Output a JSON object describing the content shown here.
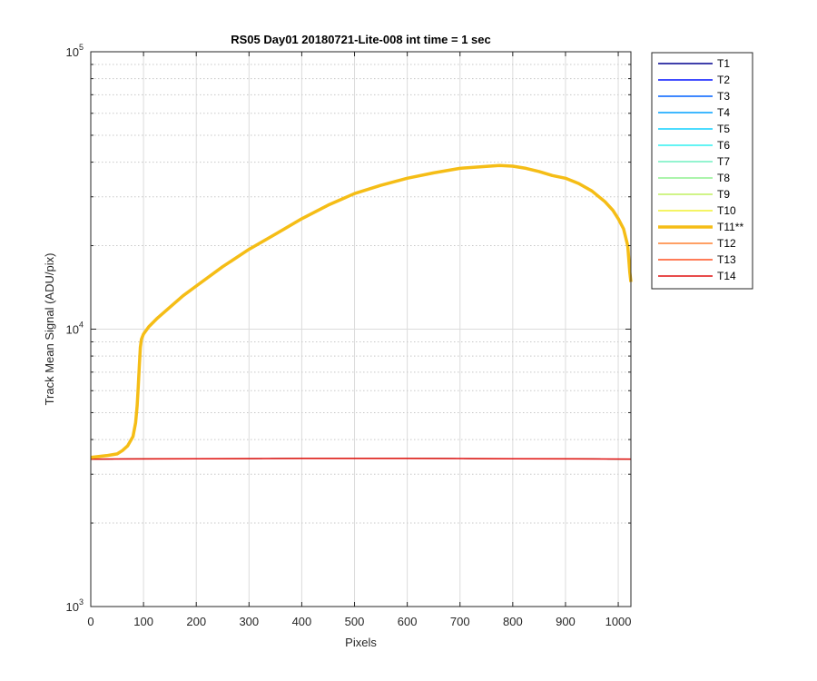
{
  "chart_data": {
    "type": "line",
    "title": "RS05 Day01 20180721-Lite-008 int time = 1 sec",
    "xlabel": "Pixels",
    "ylabel": "Track Mean Signal (ADU/pix)",
    "xlim": [
      0,
      1024
    ],
    "ylim": [
      1000,
      100000
    ],
    "yscale": "log",
    "grid": true,
    "minor_grid": true,
    "legend_position": "outside-right",
    "x_ticks": [
      0,
      100,
      200,
      300,
      400,
      500,
      600,
      700,
      800,
      900,
      1000
    ],
    "x_tick_labels": [
      "0",
      "100",
      "200",
      "300",
      "400",
      "500",
      "600",
      "700",
      "800",
      "900",
      "1000"
    ],
    "y_ticks": [
      1000,
      10000,
      100000
    ],
    "y_tick_labels": [
      {
        "base": "10",
        "exp": "3"
      },
      {
        "base": "10",
        "exp": "4"
      },
      {
        "base": "10",
        "exp": "5"
      }
    ],
    "series": [
      {
        "name": "T1",
        "color": "#00008f",
        "width": 1,
        "x": [
          0,
          200,
          400,
          600,
          800,
          1024
        ],
        "y": [
          3400,
          3410,
          3420,
          3420,
          3410,
          3400
        ]
      },
      {
        "name": "T2",
        "color": "#0010ff",
        "width": 1,
        "x": [
          0,
          200,
          400,
          600,
          800,
          1024
        ],
        "y": [
          3400,
          3410,
          3420,
          3420,
          3410,
          3400
        ]
      },
      {
        "name": "T3",
        "color": "#0060ff",
        "width": 1,
        "x": [
          0,
          200,
          400,
          600,
          800,
          1024
        ],
        "y": [
          3400,
          3410,
          3420,
          3420,
          3410,
          3400
        ]
      },
      {
        "name": "T4",
        "color": "#00a0ff",
        "width": 1,
        "x": [
          0,
          200,
          400,
          600,
          800,
          1024
        ],
        "y": [
          3400,
          3410,
          3420,
          3420,
          3410,
          3400
        ]
      },
      {
        "name": "T5",
        "color": "#10d0ff",
        "width": 1,
        "x": [
          0,
          200,
          400,
          600,
          800,
          1024
        ],
        "y": [
          3400,
          3410,
          3420,
          3420,
          3410,
          3400
        ]
      },
      {
        "name": "T6",
        "color": "#30f0f0",
        "width": 1,
        "x": [
          0,
          200,
          400,
          600,
          800,
          1024
        ],
        "y": [
          3400,
          3410,
          3420,
          3420,
          3410,
          3400
        ]
      },
      {
        "name": "T7",
        "color": "#70f0c0",
        "width": 1,
        "x": [
          0,
          200,
          400,
          600,
          800,
          1024
        ],
        "y": [
          3400,
          3410,
          3420,
          3420,
          3410,
          3400
        ]
      },
      {
        "name": "T8",
        "color": "#90f090",
        "width": 1,
        "x": [
          0,
          200,
          400,
          600,
          800,
          1024
        ],
        "y": [
          3400,
          3410,
          3420,
          3420,
          3410,
          3400
        ]
      },
      {
        "name": "T9",
        "color": "#c0f060",
        "width": 1,
        "x": [
          0,
          200,
          400,
          600,
          800,
          1024
        ],
        "y": [
          3400,
          3410,
          3420,
          3420,
          3410,
          3400
        ]
      },
      {
        "name": "T10",
        "color": "#f0f030",
        "width": 1,
        "x": [
          0,
          200,
          400,
          600,
          800,
          1024
        ],
        "y": [
          3400,
          3410,
          3420,
          3420,
          3410,
          3400
        ]
      },
      {
        "name": "T12",
        "color": "#ff8030",
        "width": 1,
        "x": [
          0,
          200,
          400,
          600,
          800,
          1024
        ],
        "y": [
          3400,
          3410,
          3420,
          3420,
          3410,
          3400
        ]
      },
      {
        "name": "T13",
        "color": "#ff5020",
        "width": 1,
        "x": [
          0,
          200,
          400,
          600,
          800,
          1024
        ],
        "y": [
          3400,
          3410,
          3420,
          3420,
          3410,
          3400
        ]
      },
      {
        "name": "T14",
        "color": "#e01010",
        "width": 1.5,
        "x": [
          0,
          200,
          400,
          600,
          800,
          1024
        ],
        "y": [
          3400,
          3410,
          3420,
          3420,
          3410,
          3400
        ]
      },
      {
        "name": "T11**",
        "color": "#f5bd16",
        "width": 3.5,
        "highlight": true,
        "x": [
          0,
          30,
          50,
          60,
          70,
          80,
          85,
          88,
          90,
          92,
          94,
          96,
          100,
          110,
          125,
          150,
          175,
          200,
          250,
          300,
          350,
          400,
          450,
          500,
          550,
          600,
          650,
          700,
          750,
          775,
          800,
          825,
          850,
          875,
          900,
          925,
          950,
          975,
          990,
          1000,
          1010,
          1018,
          1022,
          1024
        ],
        "y": [
          3450,
          3500,
          3550,
          3650,
          3800,
          4100,
          4600,
          5300,
          6200,
          7400,
          8600,
          9200,
          9600,
          10200,
          10900,
          12000,
          13200,
          14300,
          16800,
          19400,
          22000,
          25000,
          28000,
          30800,
          33000,
          35000,
          36600,
          38000,
          38600,
          38900,
          38700,
          38000,
          37000,
          35800,
          35000,
          33500,
          31500,
          28800,
          26800,
          25000,
          23000,
          20000,
          16000,
          14800
        ]
      }
    ],
    "legend_order": [
      "T1",
      "T2",
      "T3",
      "T4",
      "T5",
      "T6",
      "T7",
      "T8",
      "T9",
      "T10",
      "T11**",
      "T12",
      "T13",
      "T14"
    ]
  }
}
